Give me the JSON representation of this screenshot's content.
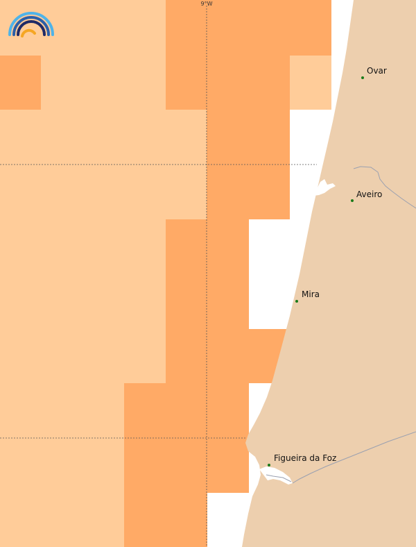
{
  "map": {
    "meridian_label": "9°W",
    "colors": {
      "sea": "#ffffff",
      "land": "#edcfae",
      "cell_light": "#ffcc99",
      "cell_dark": "#ffaa66",
      "river": "#9aa0b0",
      "graticule": "#555555",
      "city_dot": "#1a7a1a"
    },
    "cities": [
      {
        "name": "Ovar"
      },
      {
        "name": "Aveiro"
      },
      {
        "name": "Mira"
      },
      {
        "name": "Figueira da Foz"
      }
    ],
    "logo": {
      "icon": "rainbow-logo-icon"
    }
  }
}
